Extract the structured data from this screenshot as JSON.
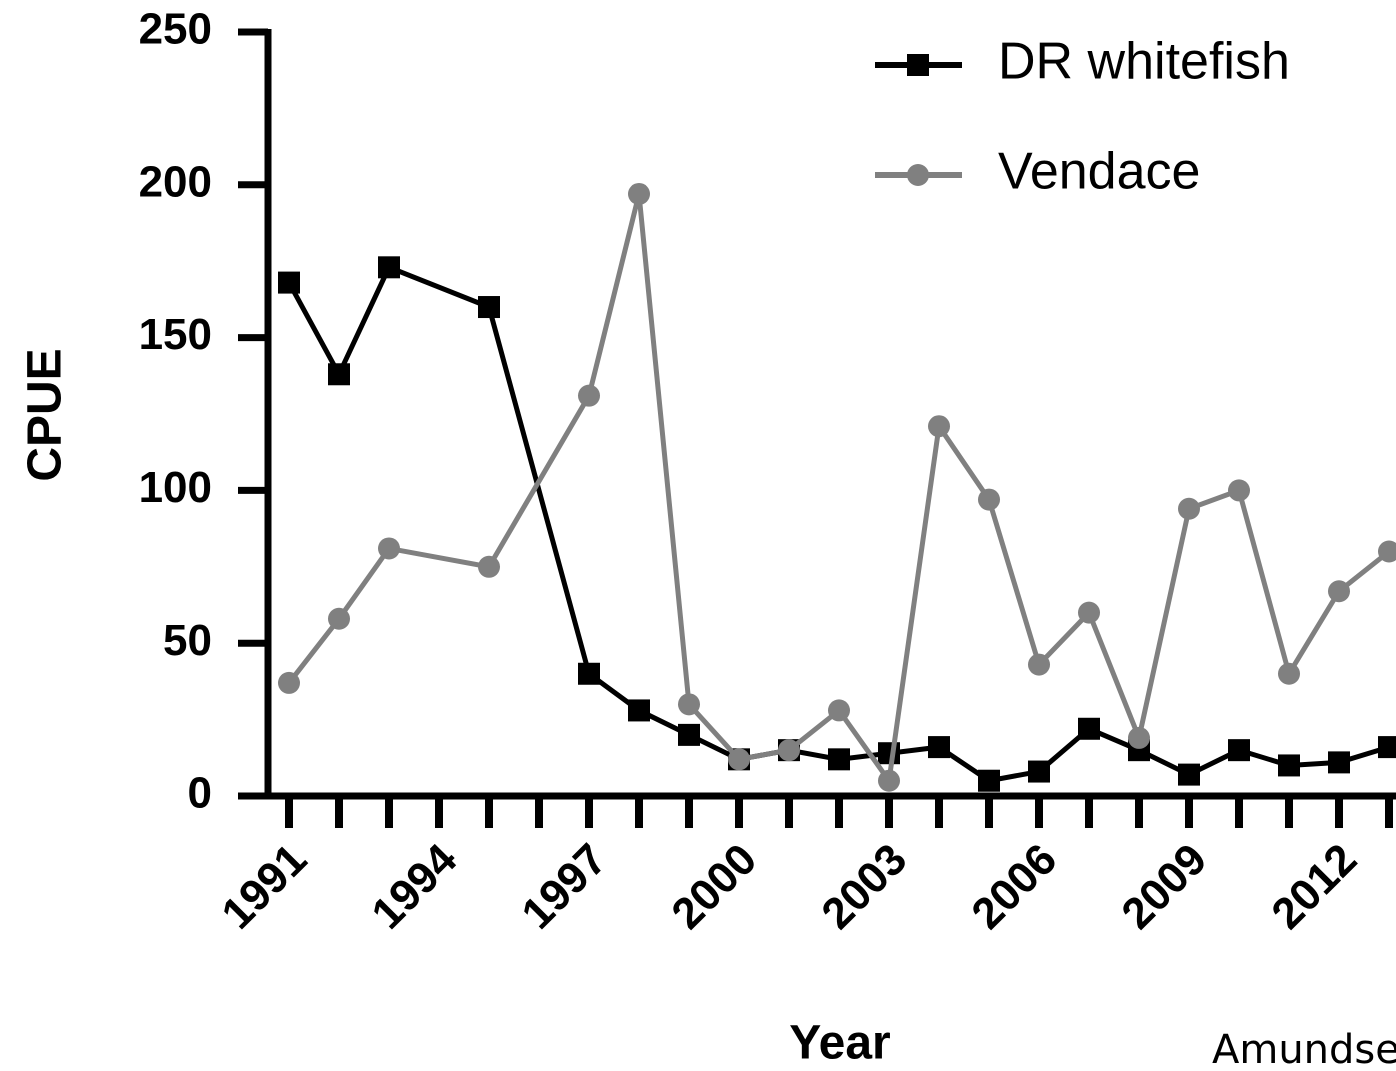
{
  "chart_data": {
    "type": "line",
    "xlabel": "Year",
    "ylabel": "CPUE",
    "annotation": "Amundse",
    "xlim": [
      1990.58,
      2013.14
    ],
    "xticks": [
      1991,
      1994,
      1997,
      2000,
      2003,
      2006,
      2009,
      2012
    ],
    "xminor": [
      1991,
      1992,
      1993,
      1994,
      1995,
      1996,
      1997,
      1998,
      1999,
      2000,
      2001,
      2002,
      2003,
      2004,
      2005,
      2006,
      2007,
      2008,
      2009,
      2010,
      2011,
      2012,
      2013
    ],
    "ylim": [
      0,
      250
    ],
    "yticks": [
      0,
      50,
      100,
      150,
      200,
      250
    ],
    "legend": "upper right",
    "x": [
      1991,
      1992,
      1993,
      1995,
      1997,
      1998,
      1999,
      2000,
      2001,
      2002,
      2003,
      2004,
      2005,
      2006,
      2007,
      2008,
      2009,
      2010,
      2011,
      2012,
      2013
    ],
    "series": [
      {
        "name": "DR whitefish",
        "color": "#000000",
        "marker": "square",
        "values": [
          168,
          138,
          173,
          160,
          40,
          28,
          20,
          12,
          15,
          12,
          14,
          16,
          5,
          8,
          22,
          15,
          7,
          15,
          10,
          11,
          16
        ]
      },
      {
        "name": "Vendace",
        "color": "#808080",
        "marker": "circle",
        "values": [
          37,
          58,
          81,
          75,
          131,
          197,
          30,
          12,
          15,
          28,
          5,
          121,
          97,
          43,
          60,
          19,
          94,
          100,
          40,
          67,
          80
        ]
      }
    ]
  }
}
